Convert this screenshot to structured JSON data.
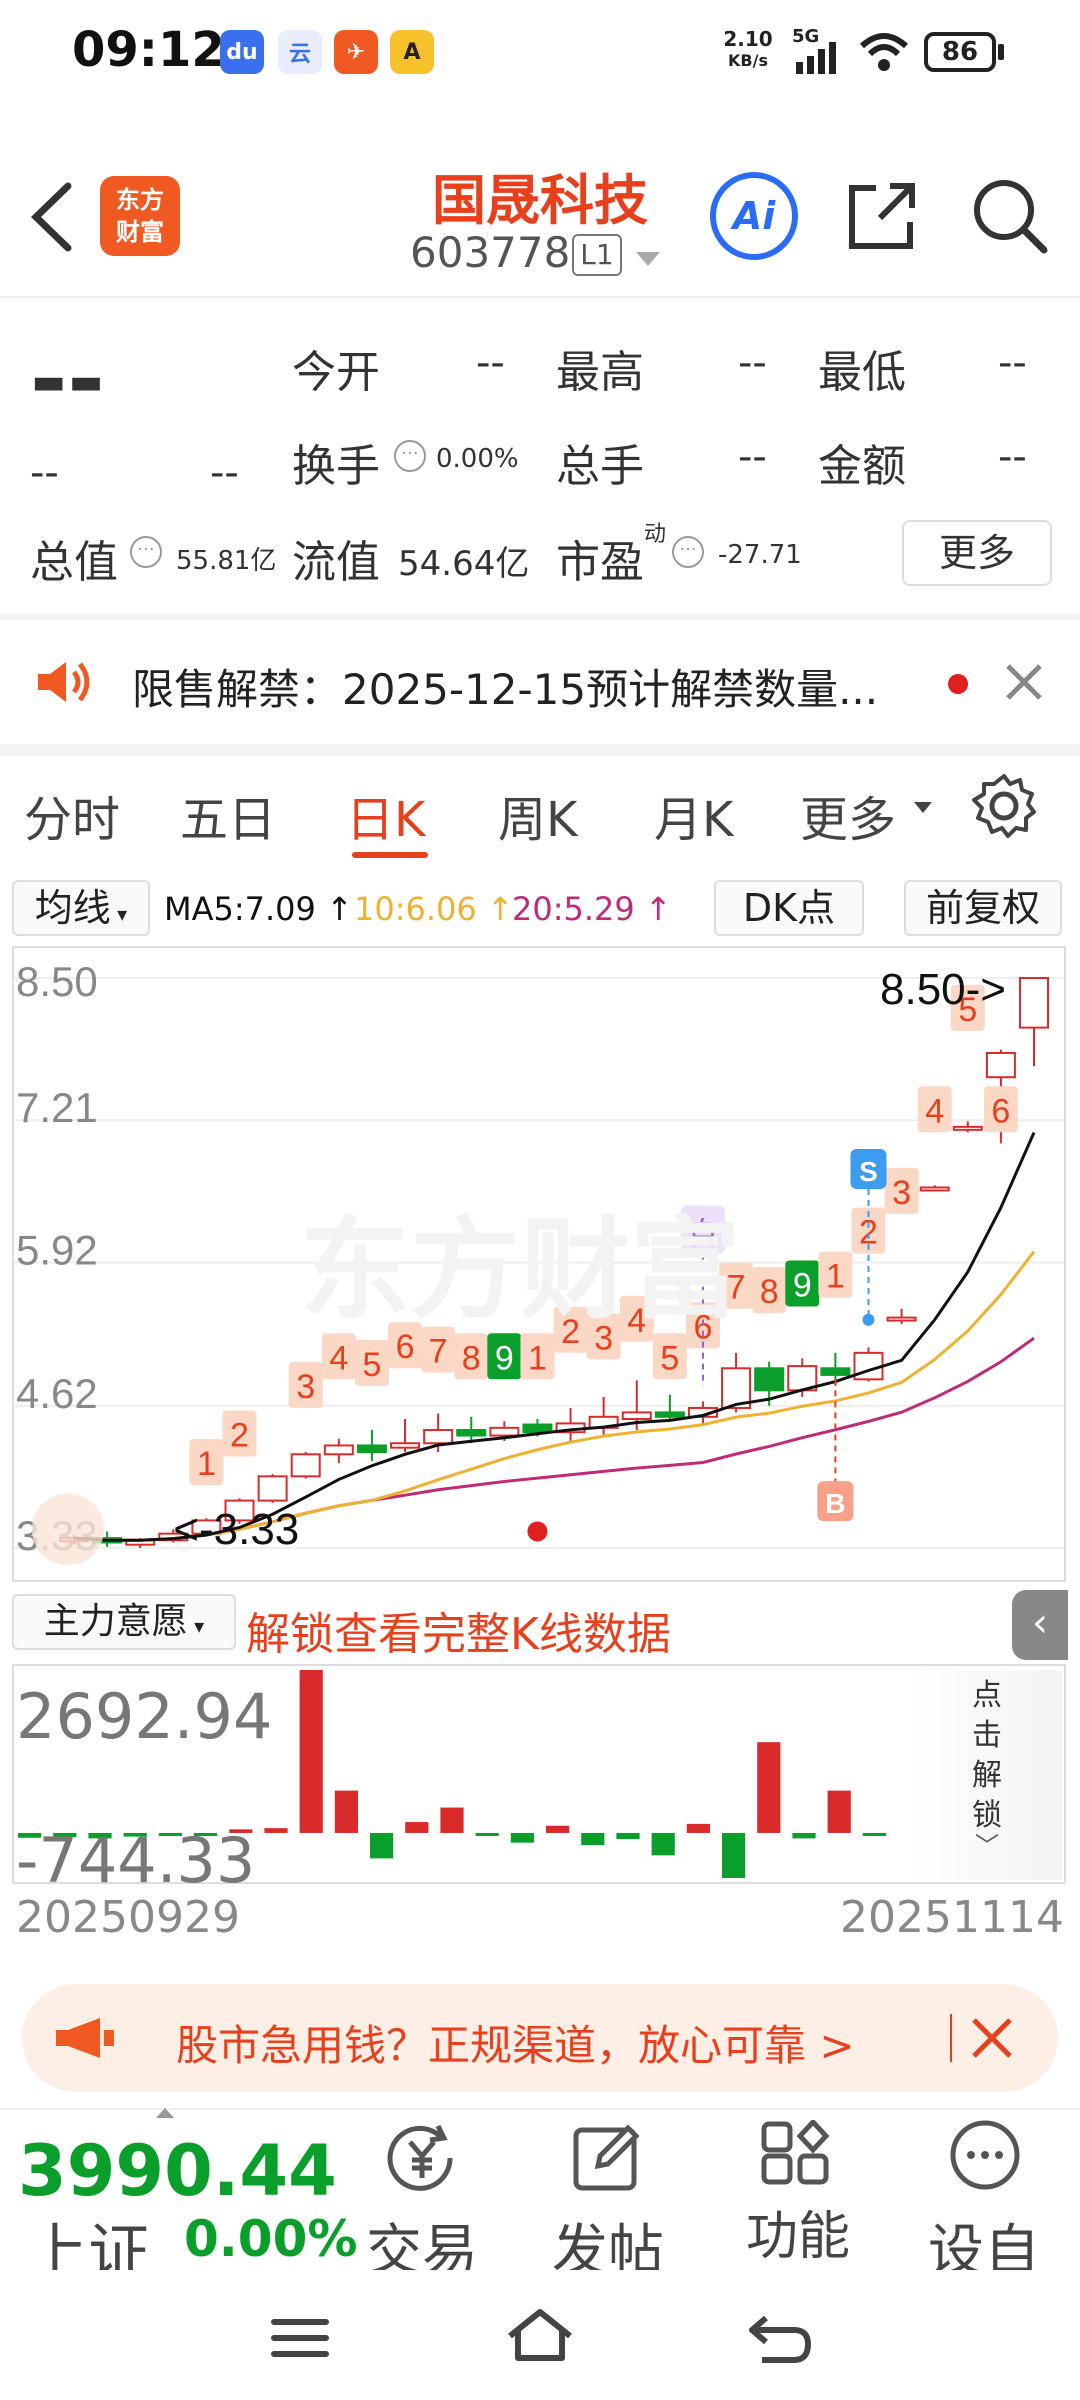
{
  "status_bar": {
    "time": "09:12",
    "app_icons": [
      {
        "name": "baidu-icon",
        "text": "du",
        "color": "#3a6ff0"
      },
      {
        "name": "cloud-ai-icon",
        "text": "云",
        "color": "#5aa0f5"
      },
      {
        "name": "paper-plane-icon",
        "text": "✈",
        "color": "#f05a22"
      },
      {
        "name": "app-a-icon",
        "text": "A",
        "color": "#f7c12c"
      }
    ],
    "net_speed": "2.10",
    "net_unit": "KB/s",
    "signal": "5G",
    "battery": "86"
  },
  "header": {
    "logo_text_1": "东方",
    "logo_text_2": "财富",
    "stock_name": "国晟科技",
    "stock_code": "603778",
    "level": "L1",
    "ai_label": "Ai"
  },
  "quote": {
    "price": "--",
    "change": "--",
    "change_pct": "--",
    "open_label": "今开",
    "open_value": "--",
    "high_label": "最高",
    "high_value": "--",
    "low_label": "最低",
    "low_value": "--",
    "turnover_label": "换手",
    "turnover_value": "0.00%",
    "volume_label": "总手",
    "volume_value": "--",
    "amount_label": "金额",
    "amount_value": "--",
    "mktcap_label": "总值",
    "mktcap_value": "55.81亿",
    "float_label": "流值",
    "float_value": "54.64亿",
    "pe_label": "市盈",
    "pe_sup": "动",
    "pe_value": "-27.71",
    "more_label": "更多"
  },
  "notice": {
    "text": "限售解禁：2025-12-15预计解禁数量..."
  },
  "tabs": [
    "分时",
    "五日",
    "日K",
    "周K",
    "月K",
    "更多"
  ],
  "active_tab": "日K",
  "ma_row": {
    "ma_select": "均线",
    "ma5": "MA5:7.09 ↑",
    "ma10": "10:6.06 ↑",
    "ma20": "20:5.29 ↑",
    "dk_label": "DK点",
    "adjust_label": "前复权"
  },
  "chart_data": {
    "type": "candlestick",
    "y_ticks": [
      "8.50",
      "7.21",
      "5.92",
      "4.62",
      "3.33"
    ],
    "ylim": [
      3.33,
      8.5
    ],
    "max_label": "8.50->",
    "min_label": "<-3.33",
    "watermark": "东方财富",
    "candles": [
      {
        "o": 3.4,
        "h": 3.45,
        "l": 3.36,
        "c": 3.42
      },
      {
        "o": 3.42,
        "h": 3.48,
        "l": 3.34,
        "c": 3.38
      },
      {
        "o": 3.36,
        "h": 3.42,
        "l": 3.33,
        "c": 3.4
      },
      {
        "o": 3.4,
        "h": 3.5,
        "l": 3.38,
        "c": 3.46
      },
      {
        "o": 3.46,
        "h": 3.6,
        "l": 3.44,
        "c": 3.58
      },
      {
        "o": 3.58,
        "h": 3.78,
        "l": 3.55,
        "c": 3.76
      },
      {
        "o": 3.76,
        "h": 4.0,
        "l": 3.74,
        "c": 3.98
      },
      {
        "o": 3.98,
        "h": 4.2,
        "l": 3.96,
        "c": 4.18
      },
      {
        "o": 4.18,
        "h": 4.32,
        "l": 4.1,
        "c": 4.26
      },
      {
        "o": 4.26,
        "h": 4.4,
        "l": 4.12,
        "c": 4.2
      },
      {
        "o": 4.24,
        "h": 4.5,
        "l": 4.2,
        "c": 4.28
      },
      {
        "o": 4.28,
        "h": 4.55,
        "l": 4.2,
        "c": 4.4
      },
      {
        "o": 4.4,
        "h": 4.52,
        "l": 4.28,
        "c": 4.35
      },
      {
        "o": 4.35,
        "h": 4.48,
        "l": 4.3,
        "c": 4.42
      },
      {
        "o": 4.45,
        "h": 4.5,
        "l": 4.34,
        "c": 4.38
      },
      {
        "o": 4.38,
        "h": 4.6,
        "l": 4.3,
        "c": 4.46
      },
      {
        "o": 4.42,
        "h": 4.7,
        "l": 4.34,
        "c": 4.52
      },
      {
        "o": 4.5,
        "h": 4.85,
        "l": 4.4,
        "c": 4.56
      },
      {
        "o": 4.56,
        "h": 4.72,
        "l": 4.48,
        "c": 4.52
      },
      {
        "o": 4.52,
        "h": 4.66,
        "l": 4.46,
        "c": 4.6
      },
      {
        "o": 4.6,
        "h": 5.1,
        "l": 4.56,
        "c": 4.96
      },
      {
        "o": 4.96,
        "h": 5.02,
        "l": 4.62,
        "c": 4.76
      },
      {
        "o": 4.76,
        "h": 5.05,
        "l": 4.7,
        "c": 4.98
      },
      {
        "o": 4.96,
        "h": 5.1,
        "l": 4.8,
        "c": 4.9
      },
      {
        "o": 4.86,
        "h": 5.15,
        "l": 4.84,
        "c": 5.1
      },
      {
        "o": 5.4,
        "h": 5.5,
        "l": 5.36,
        "c": 5.42
      },
      {
        "o": 6.6,
        "h": 6.62,
        "l": 6.58,
        "c": 6.6
      },
      {
        "o": 7.15,
        "h": 7.2,
        "l": 7.1,
        "c": 7.15
      },
      {
        "o": 7.6,
        "h": 7.85,
        "l": 7.0,
        "c": 7.82
      },
      {
        "o": 8.05,
        "h": 8.5,
        "l": 7.7,
        "c": 8.5
      }
    ],
    "counts": [
      {
        "i": 4,
        "n": "1",
        "y": 4.1
      },
      {
        "i": 5,
        "n": "2",
        "y": 4.36
      },
      {
        "i": 7,
        "n": "3",
        "y": 4.8
      },
      {
        "i": 8,
        "n": "4",
        "y": 5.06
      },
      {
        "i": 9,
        "n": "5",
        "y": 5.0
      },
      {
        "i": 10,
        "n": "6",
        "y": 5.16
      },
      {
        "i": 11,
        "n": "7",
        "y": 5.12
      },
      {
        "i": 12,
        "n": "8",
        "y": 5.06
      },
      {
        "i": 13,
        "n": "9",
        "y": 5.06,
        "green": true
      },
      {
        "i": 14,
        "n": "1",
        "y": 5.06
      },
      {
        "i": 15,
        "n": "2",
        "y": 5.3
      },
      {
        "i": 16,
        "n": "3",
        "y": 5.24
      },
      {
        "i": 17,
        "n": "4",
        "y": 5.4
      },
      {
        "i": 18,
        "n": "5",
        "y": 5.06
      },
      {
        "i": 19,
        "n": "6",
        "y": 5.34
      },
      {
        "i": 20,
        "n": "7",
        "y": 5.7
      },
      {
        "i": 21,
        "n": "8",
        "y": 5.66
      },
      {
        "i": 22,
        "n": "9",
        "y": 5.72,
        "green": true
      },
      {
        "i": 23,
        "n": "1",
        "y": 5.8
      },
      {
        "i": 24,
        "n": "2",
        "y": 6.2
      },
      {
        "i": 25,
        "n": "3",
        "y": 6.56
      },
      {
        "i": 26,
        "n": "4",
        "y": 7.3
      },
      {
        "i": 27,
        "n": "5",
        "y": 8.22
      },
      {
        "i": 28,
        "n": "6",
        "y": 7.3
      }
    ],
    "markers": {
      "self": "自",
      "sell": "S",
      "buy": "B"
    }
  },
  "sub_chart": {
    "select_label": "主力意愿",
    "unlock_text": "解锁查看完整K线数据",
    "top_value": "2692.94",
    "bottom_value": "-744.33",
    "side_text": [
      "点",
      "击",
      "解",
      "锁"
    ],
    "bars": [
      -80,
      -70,
      -90,
      -60,
      -40,
      -50,
      60,
      80,
      2692.94,
      700,
      -420,
      180,
      420,
      -30,
      -160,
      120,
      -200,
      -100,
      -370,
      150,
      -744.33,
      1500,
      -90,
      700,
      -20
    ]
  },
  "date_range": {
    "start": "20250929",
    "end": "20251114"
  },
  "ad": {
    "text": "股市急用钱？正规渠道，放心可靠 >"
  },
  "bottom_bar": {
    "index_value": "3990.44",
    "index_name": "上证",
    "index_change": "0.00%",
    "items": [
      {
        "label": "交易",
        "icon": "yen-icon"
      },
      {
        "label": "发帖",
        "icon": "edit-icon"
      },
      {
        "label": "功能",
        "icon": "grid-icon"
      },
      {
        "label": "设自",
        "icon": "more-circle-icon"
      }
    ]
  },
  "colors": {
    "accent": "#e8401c",
    "up": "#d92b2b",
    "down": "#0a9e2a",
    "ma5": "#111111",
    "ma10": "#f0b030",
    "ma20": "#c02a78"
  }
}
